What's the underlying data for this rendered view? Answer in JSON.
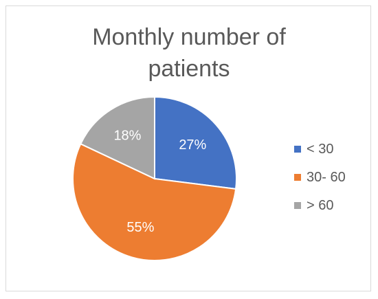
{
  "chart_data": {
    "type": "pie",
    "title_lines": [
      "Monthly number of",
      "patients"
    ],
    "slices": [
      {
        "label": "< 30",
        "value": 27,
        "display": "27%",
        "color": "#4472c4"
      },
      {
        "label": "30- 60",
        "value": 55,
        "display": "55%",
        "color": "#ed7d31"
      },
      {
        "label": "> 60",
        "value": 18,
        "display": "18%",
        "color": "#a5a5a5"
      }
    ],
    "legend_position": "right",
    "data_label_color": "#ffffff",
    "text_color": "#595959"
  }
}
